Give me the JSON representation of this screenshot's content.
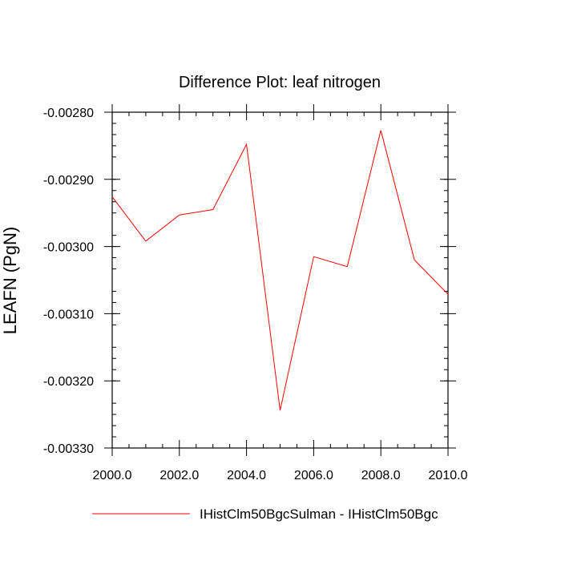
{
  "chart_data": {
    "type": "line",
    "title": "Difference Plot: leaf nitrogen",
    "xlabel": "",
    "ylabel": "LEAFN  (PgN)",
    "xlim": [
      2000,
      2010
    ],
    "ylim": [
      -0.0033,
      -0.0028
    ],
    "x_ticks": [
      2000,
      2002,
      2004,
      2006,
      2008,
      2010
    ],
    "x_tick_labels": [
      "2000.0",
      "2002.0",
      "2004.0",
      "2006.0",
      "2008.0",
      "2010.0"
    ],
    "y_ticks": [
      -0.0028,
      -0.0029,
      -0.003,
      -0.0031,
      -0.0032,
      -0.0033
    ],
    "y_tick_labels": [
      "-0.00280",
      "-0.00290",
      "-0.00300",
      "-0.00310",
      "-0.00320",
      "-0.00330"
    ],
    "grid": false,
    "legend_position": "bottom",
    "x": [
      2000,
      2001,
      2002,
      2003,
      2004,
      2005,
      2006,
      2007,
      2008,
      2009,
      2010
    ],
    "series": [
      {
        "name": "IHistClm50BgcSulman - IHistClm50Bgc",
        "color": "#ff0000",
        "values": [
          -0.002926,
          -0.002992,
          -0.002953,
          -0.002945,
          -0.002848,
          -0.003244,
          -0.003015,
          -0.00303,
          -0.002827,
          -0.00302,
          -0.003071
        ]
      }
    ]
  }
}
